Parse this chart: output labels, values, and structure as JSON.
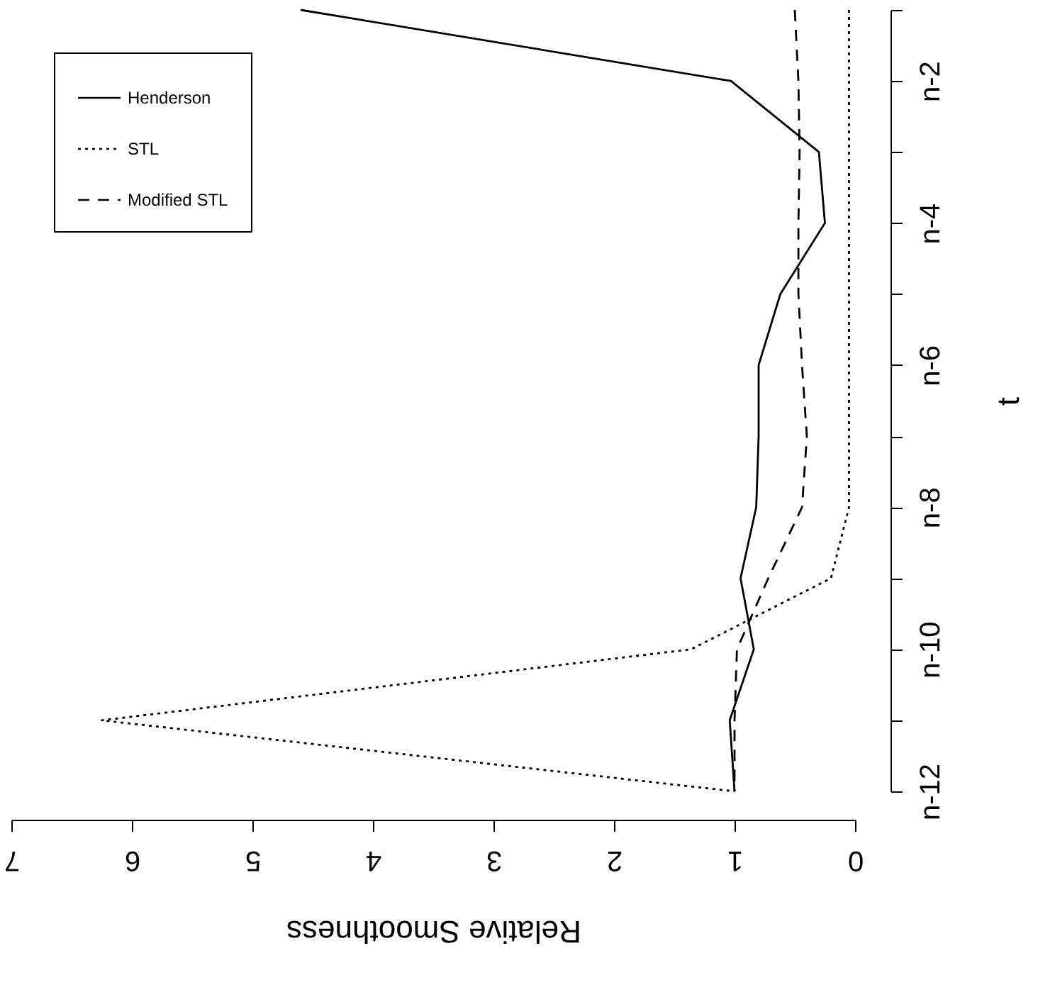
{
  "chart_data": {
    "type": "line",
    "orientation": "horizontal",
    "xlabel": "Relative Smoothness",
    "ylabel": "t",
    "categories": [
      null,
      "n-2",
      null,
      "n-4",
      null,
      "n-6",
      null,
      "n-8",
      null,
      "n-10",
      null,
      "n-12"
    ],
    "series": [
      {
        "name": "Henderson",
        "color": "#000000",
        "line_style": "solid",
        "values": [
          4.6,
          1.03,
          0.3,
          0.25,
          0.62,
          0.8,
          0.8,
          0.82,
          0.95,
          0.84,
          1.04,
          1.0
        ]
      },
      {
        "name": "STL",
        "color": "#000000",
        "line_style": "dotted",
        "values": [
          0.05,
          0.05,
          0.05,
          0.05,
          0.05,
          0.05,
          0.05,
          0.05,
          0.2,
          1.36,
          6.25,
          1.0
        ]
      },
      {
        "name": "Modified STL",
        "color": "#000000",
        "line_style": "dashed",
        "values": [
          0.5,
          0.47,
          0.46,
          0.47,
          0.47,
          0.44,
          0.4,
          0.44,
          0.72,
          0.98,
          1.0,
          1.0
        ]
      }
    ],
    "xlim": [
      7,
      0
    ],
    "xticks": [
      0,
      1,
      2,
      3,
      4,
      5,
      6,
      7
    ],
    "grid": false,
    "legend": "top left"
  }
}
